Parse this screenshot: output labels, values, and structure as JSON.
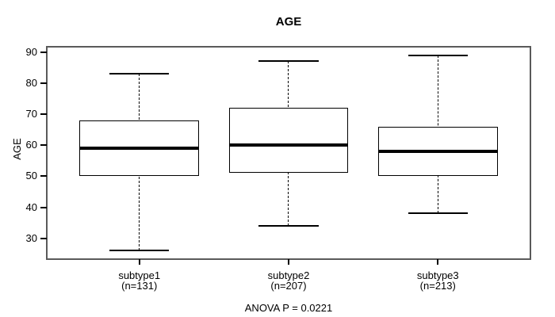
{
  "page": {
    "background": "#ffffff"
  },
  "chart_data": {
    "type": "boxplot",
    "title": "AGE",
    "ylabel": "AGE",
    "xlabel": "",
    "annotation": "ANOVA P = 0.0221",
    "yticks": [
      30,
      40,
      50,
      60,
      70,
      80,
      90
    ],
    "ylim": [
      23.3,
      91.7
    ],
    "xlim": [
      0.38,
      3.62
    ],
    "grid": false,
    "legend": "none",
    "line_color": "#000000",
    "frame_color": "#5a5a5a",
    "background_color": "#ffffff",
    "box_width": 0.8,
    "cap_width": 0.4,
    "groups": [
      {
        "x": 1,
        "label": "subtype1",
        "sublabel": "(n=131)",
        "whisker_low": 26,
        "q1": 50,
        "median": 59,
        "q3": 68,
        "whisker_high": 83
      },
      {
        "x": 2,
        "label": "subtype2",
        "sublabel": "(n=207)",
        "whisker_low": 34,
        "q1": 51,
        "median": 60,
        "q3": 72,
        "whisker_high": 87
      },
      {
        "x": 3,
        "label": "subtype3",
        "sublabel": "(n=213)",
        "whisker_low": 38,
        "q1": 50,
        "median": 58,
        "q3": 66,
        "whisker_high": 89
      }
    ]
  }
}
